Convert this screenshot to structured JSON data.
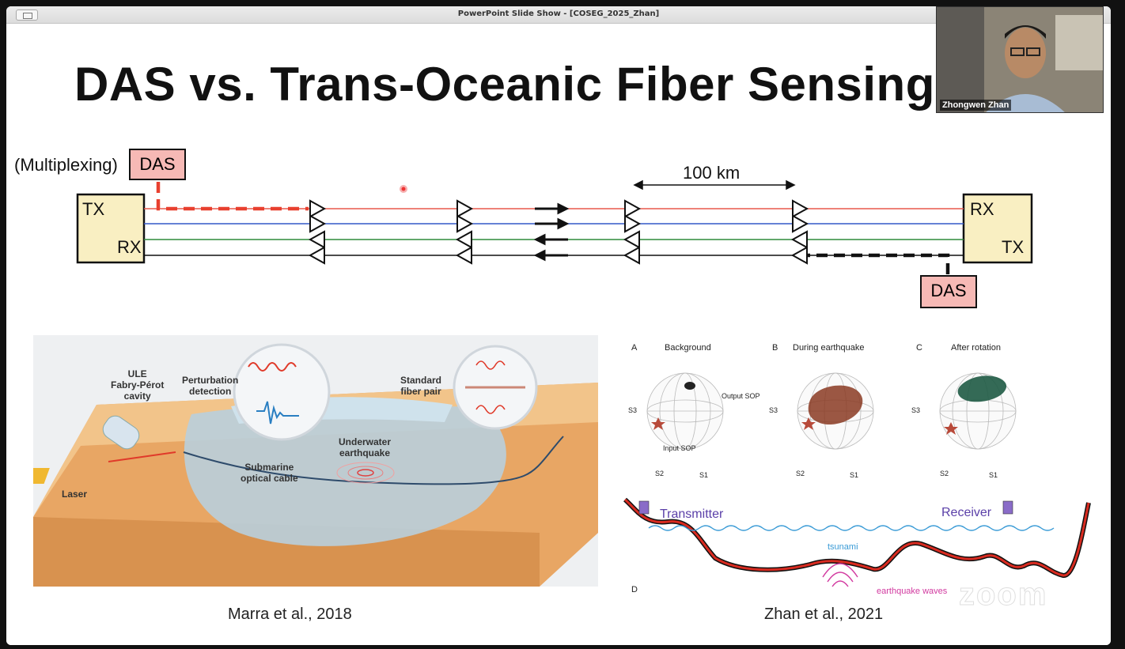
{
  "window": {
    "title": "PowerPoint Slide Show - [COSEG_2025_Zhan]"
  },
  "slide": {
    "title": "DAS vs. Trans-Oceanic Fiber Sensing",
    "diagram": {
      "multiplexing_label": "(Multiplexing)",
      "das_label": "DAS",
      "distance_label": "100 km",
      "left_terminal": {
        "top": "TX",
        "bottom": "RX"
      },
      "right_terminal": {
        "top": "RX",
        "bottom": "TX"
      },
      "colors": {
        "red": "#e8584c",
        "blue": "#3358c9",
        "green": "#2f8a3a",
        "black": "#111111",
        "das_fill": "#f6b9b5",
        "terminal_fill": "#f9efc2"
      }
    },
    "left_figure": {
      "labels": {
        "ule": "ULE\nFabry-Pérot\ncavity",
        "perturbation": "Perturbation\ndetection",
        "standard_pair": "Standard\nfiber pair",
        "underwater": "Underwater\nearthquake",
        "cable": "Submarine\noptical cable",
        "laser": "Laser"
      },
      "caption": "Marra et al., 2018"
    },
    "right_figure": {
      "panels": [
        {
          "letter": "A",
          "title": "Background"
        },
        {
          "letter": "B",
          "title": "During earthquake"
        },
        {
          "letter": "C",
          "title": "After rotation"
        }
      ],
      "axis_labels": {
        "s1": "S1",
        "s2": "S2",
        "s3": "S3"
      },
      "annotations": {
        "output_sop": "Output SOP",
        "input_sop": "Input SOP"
      },
      "panel_d": {
        "letter": "D",
        "transmitter": "Transmitter",
        "receiver": "Receiver",
        "tsunami": "tsunami",
        "earthquake_waves": "earthquake waves"
      },
      "caption": "Zhan et al., 2021"
    }
  },
  "webcam": {
    "name": "Zhongwen Zhan"
  },
  "watermark": "zoom"
}
